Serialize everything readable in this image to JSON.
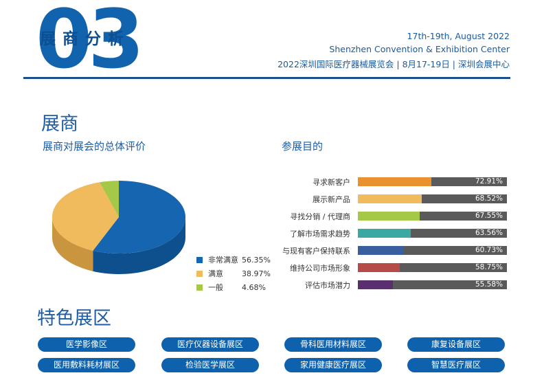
{
  "header": {
    "section_number": "03",
    "section_title": "展商分析",
    "date_line": "17th-19th, August 2022",
    "venue_line": "Shenzhen Convention & Exhibition Center",
    "event_line": "2022深圳国际医疗器械展览会 | 8月17-19日 | 深圳会展中心"
  },
  "main": {
    "title": "展商",
    "satisfaction_title": "展商对展会的总体评价",
    "purpose_title": "参展目的",
    "zones_title": "特色展区"
  },
  "chart_data": [
    {
      "type": "pie",
      "title": "展商对展会的总体评价",
      "labels": [
        "非常满意",
        "满意",
        "一般"
      ],
      "values": [
        56.35,
        38.97,
        4.68
      ],
      "value_labels": [
        "56.35%",
        "38.97%",
        "4.68%"
      ],
      "colors": [
        "#1565b0",
        "#f0bb5c",
        "#a6c848"
      ],
      "legend": "bottom-right"
    },
    {
      "type": "bar",
      "orientation": "horizontal",
      "title": "参展目的",
      "categories": [
        "寻求新客户",
        "展示新产品",
        "寻找分销 / 代理商",
        "了解市场需求趋势",
        "与现有客户保持联系",
        "维持公司市场形象",
        "评估市场潜力"
      ],
      "values": [
        72.91,
        68.52,
        67.55,
        63.56,
        60.73,
        58.75,
        55.58
      ],
      "value_labels": [
        "72.91%",
        "68.52%",
        "67.55%",
        "63.56%",
        "60.73%",
        "58.75%",
        "55.58%"
      ],
      "colors": [
        "#e7922e",
        "#f0bb5c",
        "#a6c848",
        "#3aa9a4",
        "#3a5f9e",
        "#b54a46",
        "#5a2f6e"
      ],
      "track_color": "#5a5a5a",
      "xlim": [
        0,
        100
      ]
    }
  ],
  "zones": [
    "医学影像区",
    "医疗仪器设备展区",
    "骨科医用材料展区",
    "康复设备展区",
    "医用敷料耗材展区",
    "检验医学展区",
    "家用健康医疗展区",
    "智慧医疗展区"
  ]
}
